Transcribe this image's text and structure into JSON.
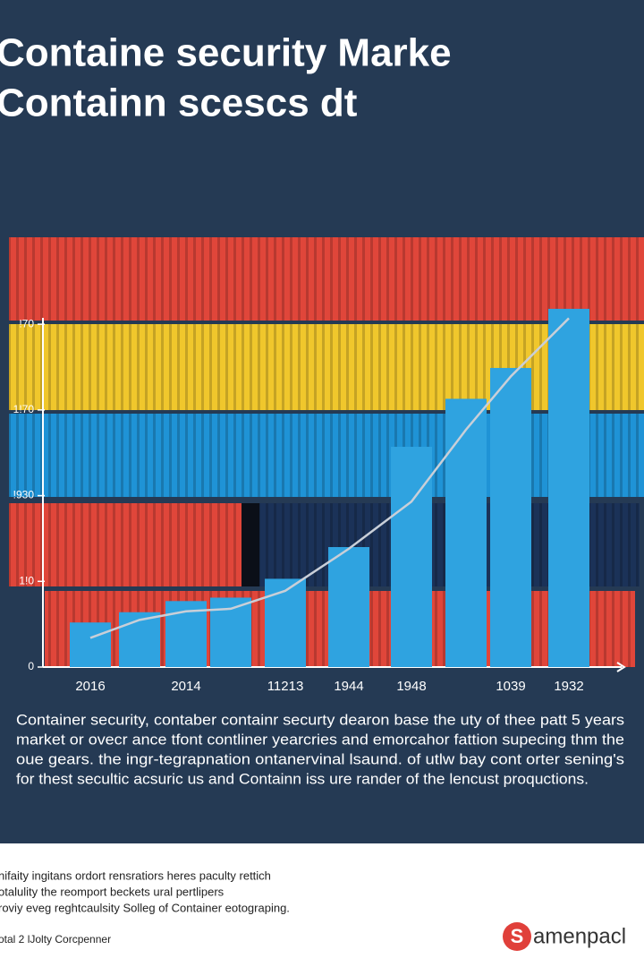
{
  "chart_data": {
    "type": "bar",
    "title_lines": [
      "Containe security Marke",
      "Containn scescs dt"
    ],
    "categories": [
      "2016",
      null,
      "2014",
      null,
      "11213",
      "1944",
      "1948",
      null,
      "1039",
      "1932"
    ],
    "values": [
      52,
      64,
      77,
      81,
      103,
      140,
      257,
      313,
      349,
      418
    ],
    "color": "#2fa3e0",
    "line_values": [
      34,
      55,
      65,
      68,
      89,
      138,
      193,
      277,
      339,
      407
    ],
    "line_color": "#c9cfd8",
    "ylim": [
      0,
      420
    ],
    "yticks": [
      0,
      {
        "value": 100,
        "label": "1!0"
      },
      {
        "value": 200,
        "label": "!930"
      },
      {
        "value": 300,
        "label": "1!70"
      },
      {
        "value": 400,
        "label": "!70"
      }
    ],
    "paragraph": [
      "Container security, contaber containr securty dearon base the uty of thee patt 5 years",
      "market or ovecr ance tfont contliner yearcries and emorcahor fattion supecing thm the",
      "oue gears. the ingr-tegrapnation ontanervinal lsaund. of utlw bay cont orter sening's",
      "for thest secultic acsuric us and Containn iss ure rander of the lencust proquctions."
    ]
  },
  "footer": {
    "lines": [
      "nifaity ingitans ordort rensratiors heres paculty rettich",
      "otalulity the reomport beckets ural pertlipers",
      "roviy eveg reghtcaulsity Solleg of Container eotograping."
    ],
    "note": "otal 2 lJolty Corcpenner",
    "logo_mark": "S",
    "logo_text": "amenpacl"
  }
}
